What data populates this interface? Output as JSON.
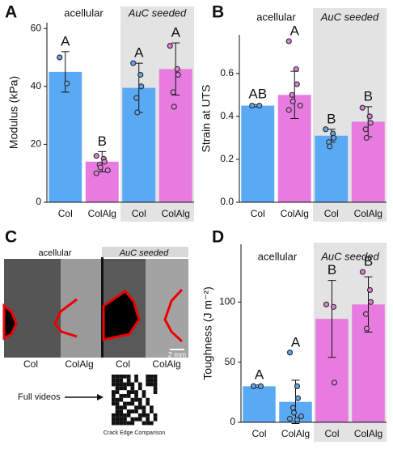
{
  "chart_data": [
    {
      "type": "bar",
      "panel": "A",
      "ylabel": "Modulus (kPa)",
      "groups": [
        "acellular",
        "AuC seeded"
      ],
      "categories": [
        "Col",
        "ColAlg",
        "Col",
        "ColAlg"
      ],
      "values": [
        45,
        14,
        39.5,
        46
      ],
      "errors": [
        7,
        3.5,
        8.5,
        9
      ],
      "colors": [
        "#5aa9f5",
        "#e77be0",
        "#5aa9f5",
        "#e77be0"
      ],
      "annotations": [
        "A",
        "B",
        "A",
        "A"
      ],
      "points": [
        [
          50,
          41
        ],
        [
          16,
          15,
          14,
          13,
          12,
          11,
          10
        ],
        [
          48,
          44,
          40,
          36,
          31
        ],
        [
          54,
          46,
          44,
          38,
          33
        ]
      ],
      "ylim": [
        0,
        62
      ],
      "yticks": [
        0,
        20,
        40,
        60
      ]
    },
    {
      "type": "bar",
      "panel": "B",
      "ylabel": "Strain at UTS",
      "groups": [
        "acellular",
        "AuC seeded"
      ],
      "categories": [
        "Col",
        "ColAlg",
        "Col",
        "ColAlg"
      ],
      "values": [
        0.45,
        0.5,
        0.31,
        0.375
      ],
      "errors": [
        0.005,
        0.11,
        0.03,
        0.07
      ],
      "colors": [
        "#5aa9f5",
        "#e77be0",
        "#5aa9f5",
        "#e77be0"
      ],
      "annotations": [
        "AB",
        "A",
        "B",
        "B"
      ],
      "points": [
        [
          0.45,
          0.45
        ],
        [
          0.75,
          0.62,
          0.55,
          0.5,
          0.47,
          0.45,
          0.43
        ],
        [
          0.34,
          0.32,
          0.3,
          0.28,
          0.26
        ],
        [
          0.44,
          0.4,
          0.37,
          0.34,
          0.3
        ]
      ],
      "ylim": [
        0,
        0.78
      ],
      "yticks": [
        {
          "value": 0,
          "label": "0.0"
        },
        0.2,
        0.4,
        0.6
      ]
    },
    {
      "type": "bar",
      "panel": "D",
      "ylabel": "Toughness (J m⁻²)",
      "groups": [
        "acellular",
        "AuC seeded"
      ],
      "categories": [
        "Col",
        "ColAlg",
        "Col",
        "ColAlg"
      ],
      "values": [
        30,
        17,
        86,
        98
      ],
      "errors": [
        1,
        18,
        32,
        23
      ],
      "colors": [
        "#5aa9f5",
        "#5aa9f5",
        "#e77be0",
        "#e77be0"
      ],
      "annotations": [
        "A",
        "A",
        "B",
        "B"
      ],
      "points": [
        [
          30,
          30
        ],
        [
          58,
          30,
          20,
          12,
          8,
          5,
          3,
          2
        ],
        [
          98,
          96,
          33
        ],
        [
          125,
          110,
          100,
          90,
          78
        ]
      ],
      "ylim": [
        0,
        148
      ],
      "yticks": [
        0,
        50,
        100
      ]
    }
  ],
  "panel_c": {
    "letter": "C",
    "left_label": "acellular",
    "right_label": "AuC seeded",
    "scale": "2 mm",
    "columns": [
      "Col",
      "ColAlg",
      "Col",
      "ColAlg"
    ],
    "arrow_label": "Full videos",
    "qr_caption": "Crack Edge Comparison"
  }
}
